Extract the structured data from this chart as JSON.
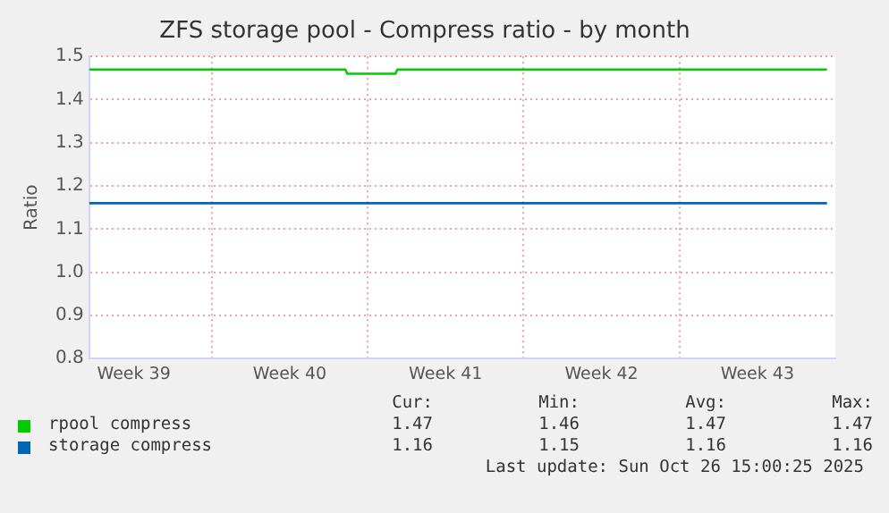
{
  "chart_data": {
    "type": "line",
    "title": "ZFS storage pool - Compress ratio - by month",
    "ylabel": "Ratio",
    "xlim": [
      "2025-09-23T12:00",
      "2025-10-27T00:00"
    ],
    "xticks": [
      {
        "value": "2025-09-25T12:00",
        "label": "Week 39"
      },
      {
        "value": "2025-09-29",
        "label": null
      },
      {
        "value": "2025-10-02T12:00",
        "label": "Week 40"
      },
      {
        "value": "2025-10-06",
        "label": null
      },
      {
        "value": "2025-10-09T12:00",
        "label": "Week 41"
      },
      {
        "value": "2025-10-13",
        "label": null
      },
      {
        "value": "2025-10-16T12:00",
        "label": "Week 42"
      },
      {
        "value": "2025-10-20",
        "label": null
      },
      {
        "value": "2025-10-23T12:00",
        "label": "Week 43"
      }
    ],
    "ylim": [
      0.8,
      1.5
    ],
    "yticks": [
      {
        "value": 0.8,
        "label": "0.8"
      },
      {
        "value": 0.9,
        "label": "0.9"
      },
      {
        "value": 1.0,
        "label": "1.0"
      },
      {
        "value": 1.1,
        "label": "1.1"
      },
      {
        "value": 1.2,
        "label": "1.2"
      },
      {
        "value": 1.3,
        "label": "1.3"
      },
      {
        "value": 1.4,
        "label": "1.4"
      },
      {
        "value": 1.5,
        "label": "1.5"
      }
    ],
    "grid": true,
    "legend": "bottom",
    "marker": "none",
    "line_style": "solid",
    "series": [
      {
        "name": "rpool compress",
        "color": "#00cc00",
        "x": [
          "2025-09-23T12:00",
          "2025-10-05T00:00",
          "2025-10-05T02:00",
          "2025-10-07T06:00",
          "2025-10-07T08:00",
          "2025-10-26T15:00"
        ],
        "values": [
          1.47,
          1.47,
          1.46,
          1.46,
          1.47,
          1.47
        ]
      },
      {
        "name": "storage compress",
        "color": "#0066b3",
        "x": [
          "2025-09-23T12:00",
          "2025-10-26T15:00"
        ],
        "values": [
          1.16,
          1.16
        ]
      }
    ],
    "annotations": [
      "Cur:",
      "Min:",
      "Avg:",
      "Max:",
      "1.47",
      "1.46",
      "1.47",
      "1.47",
      "1.16",
      "1.15",
      "1.16",
      "1.16",
      "Last update: Sun Oct 26 15:00:25 2025"
    ]
  }
}
